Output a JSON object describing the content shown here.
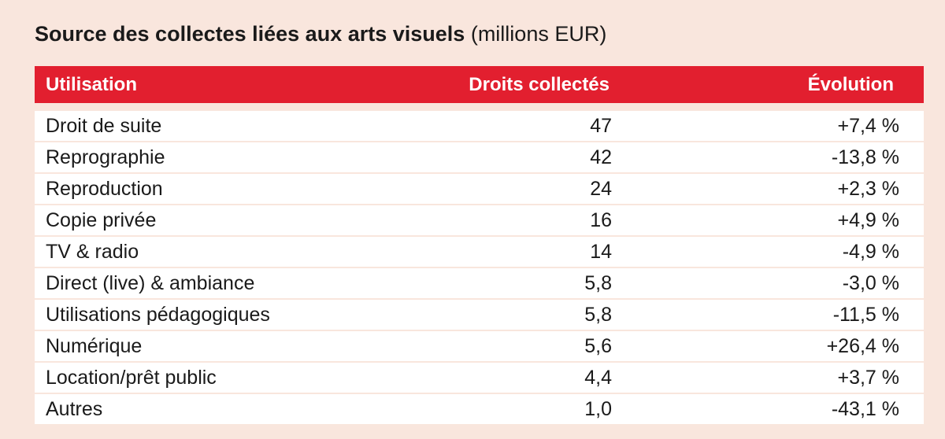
{
  "title": {
    "bold": "Source des collectes liées aux arts visuels",
    "unit": "(millions EUR)"
  },
  "header": {
    "use": "Utilisation",
    "amount": "Droits collectés",
    "evolution": "Évolution"
  },
  "rows": [
    {
      "use": "Droit de suite",
      "amount": "47",
      "evolution": "+7,4 %"
    },
    {
      "use": "Reprographie",
      "amount": "42",
      "evolution": "-13,8 %"
    },
    {
      "use": "Reproduction",
      "amount": "24",
      "evolution": "+2,3 %"
    },
    {
      "use": "Copie privée",
      "amount": "16",
      "evolution": "+4,9 %"
    },
    {
      "use": "TV & radio",
      "amount": "14",
      "evolution": "-4,9 %"
    },
    {
      "use": "Direct (live) & ambiance",
      "amount": "5,8",
      "evolution": "-3,0 %"
    },
    {
      "use": "Utilisations pédagogiques",
      "amount": "5,8",
      "evolution": "-11,5 %"
    },
    {
      "use": "Numérique",
      "amount": "5,6",
      "evolution": "+26,4 %"
    },
    {
      "use": "Location/prêt public",
      "amount": "4,4",
      "evolution": "+3,7 %"
    },
    {
      "use": "Autres",
      "amount": "1,0",
      "evolution": "-43,1 %"
    }
  ],
  "colors": {
    "background": "#f9e6dd",
    "header": "#e21f2f",
    "row": "#ffffff"
  }
}
